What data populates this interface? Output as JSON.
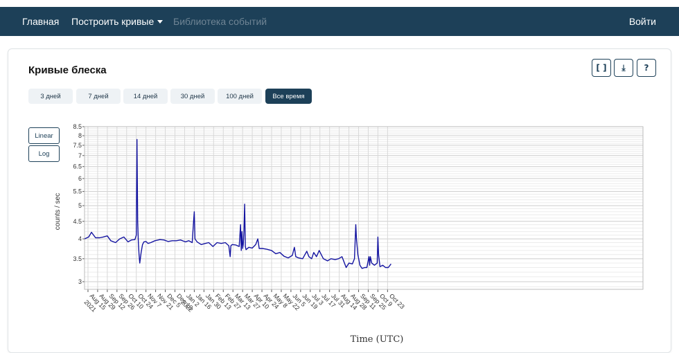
{
  "nav": {
    "home": "Главная",
    "build": "Построить кривые",
    "library": "Библиотека событий",
    "login": "Войти"
  },
  "card": {
    "title": "Кривые блеска",
    "tools": [
      {
        "label": "[ ]",
        "icon": "fullscreen-icon"
      },
      {
        "label": "⤓",
        "icon": "download-icon"
      },
      {
        "label": "?",
        "icon": "help-icon"
      }
    ],
    "ranges": [
      "3 дней",
      "7 дней",
      "14 дней",
      "30 дней",
      "100 дней",
      "Все время"
    ],
    "active_range": "Все время",
    "scales": [
      "Linear",
      "Log"
    ]
  },
  "colors": {
    "navbar": "#1d4058",
    "accent": "#1d4058",
    "series": "#1414a0"
  },
  "chart_data": {
    "type": "line",
    "xlabel": "Time (UTC)",
    "ylabel": "counts / sec",
    "yscale": "log",
    "ylim": [
      2.85,
      8.5
    ],
    "xlim": [
      "2021-08-10",
      "2023-10-28"
    ],
    "y_ticks": [
      "3",
      "3.5",
      "4",
      "4.5",
      "5",
      "5.5",
      "6",
      "6.5",
      "7",
      "7.5",
      "8",
      "8.5"
    ],
    "x_ticks": [
      {
        "date": "2021-08-15",
        "label": "Aug 15",
        "sub": "2021"
      },
      {
        "date": "2021-08-29",
        "label": "Aug 29"
      },
      {
        "date": "2021-09-12",
        "label": "Sep 12"
      },
      {
        "date": "2021-09-26",
        "label": "Sep 26"
      },
      {
        "date": "2021-10-10",
        "label": "Oct 10"
      },
      {
        "date": "2021-10-24",
        "label": "Oct 24"
      },
      {
        "date": "2021-11-07",
        "label": "Nov 7"
      },
      {
        "date": "2021-11-21",
        "label": "Nov 21"
      },
      {
        "date": "2021-12-05",
        "label": "Dec 5"
      },
      {
        "date": "2021-12-19",
        "label": "Dec 19"
      },
      {
        "date": "2022-01-02",
        "label": "Jan 2",
        "sub": "2022"
      },
      {
        "date": "2022-01-16",
        "label": "Jan 16"
      },
      {
        "date": "2022-01-30",
        "label": "Jan 30"
      },
      {
        "date": "2022-02-13",
        "label": "Feb 13"
      },
      {
        "date": "2022-02-27",
        "label": "Feb 27"
      },
      {
        "date": "2022-03-13",
        "label": "Mar 13"
      },
      {
        "date": "2022-03-27",
        "label": "Mar 27"
      },
      {
        "date": "2022-04-10",
        "label": "Apr 10"
      },
      {
        "date": "2022-04-24",
        "label": "Apr 24"
      },
      {
        "date": "2022-05-08",
        "label": "May 8"
      },
      {
        "date": "2022-05-22",
        "label": "May 22"
      },
      {
        "date": "2022-06-05",
        "label": "Jun 5"
      },
      {
        "date": "2022-06-19",
        "label": "Jun 19"
      },
      {
        "date": "2022-07-03",
        "label": "Jul 3"
      },
      {
        "date": "2022-07-17",
        "label": "Jul 17"
      },
      {
        "date": "2022-07-31",
        "label": "Jul 31"
      },
      {
        "date": "2022-08-14",
        "label": "Aug 14"
      },
      {
        "date": "2022-08-28",
        "label": "Aug 28"
      },
      {
        "date": "2022-09-11",
        "label": "Sep 11"
      },
      {
        "date": "2022-09-25",
        "label": "Sep 25"
      },
      {
        "date": "2022-10-09",
        "label": "Oct 9"
      },
      {
        "date": "2022-10-23",
        "label": "Oct 23"
      }
    ],
    "series": [
      {
        "x": [
          "2021-08-10",
          "2021-08-16",
          "2021-08-20",
          "2021-08-26",
          "2021-09-01",
          "2021-09-06",
          "2021-09-12",
          "2021-09-17",
          "2021-09-24",
          "2021-09-30",
          "2021-10-06",
          "2021-10-12",
          "2021-10-17",
          "2021-10-22",
          "2021-10-24",
          "2021-10-25",
          "2021-10-26",
          "2021-10-27",
          "2021-10-28",
          "2021-10-29",
          "2021-10-31",
          "2021-11-02",
          "2021-11-04",
          "2021-11-07",
          "2021-11-10",
          "2021-11-14",
          "2021-11-20",
          "2021-11-27",
          "2021-12-03",
          "2021-12-09",
          "2021-12-15",
          "2021-12-21",
          "2021-12-27",
          "2022-01-03",
          "2022-01-08",
          "2022-01-13",
          "2022-01-15",
          "2022-01-16",
          "2022-01-17",
          "2022-01-20",
          "2022-01-26",
          "2022-02-01",
          "2022-02-06",
          "2022-02-12",
          "2022-02-18",
          "2022-02-24",
          "2022-03-02",
          "2022-03-07",
          "2022-03-09",
          "2022-03-10",
          "2022-03-12",
          "2022-03-17",
          "2022-03-22",
          "2022-03-24",
          "2022-03-25",
          "2022-03-26",
          "2022-03-27",
          "2022-03-28",
          "2022-03-29",
          "2022-03-30",
          "2022-03-31",
          "2022-04-01",
          "2022-04-05",
          "2022-04-10",
          "2022-04-15",
          "2022-04-18",
          "2022-04-20",
          "2022-04-25",
          "2022-05-01",
          "2022-05-08",
          "2022-05-14",
          "2022-05-20",
          "2022-05-26",
          "2022-06-01",
          "2022-06-07",
          "2022-06-10",
          "2022-06-12",
          "2022-06-16",
          "2022-06-22",
          "2022-06-28",
          "2022-07-01",
          "2022-07-05",
          "2022-07-08",
          "2022-07-12",
          "2022-07-16",
          "2022-07-22",
          "2022-07-28",
          "2022-08-02",
          "2022-08-08",
          "2022-08-13",
          "2022-08-18",
          "2022-08-24",
          "2022-08-28",
          "2022-09-02",
          "2022-09-05",
          "2022-09-07",
          "2022-09-08",
          "2022-09-10",
          "2022-09-13",
          "2022-09-16",
          "2022-09-20",
          "2022-09-23",
          "2022-09-26",
          "2022-09-27",
          "2022-09-28",
          "2022-09-30",
          "2022-10-04",
          "2022-10-08",
          "2022-10-09",
          "2022-10-10",
          "2022-10-12",
          "2022-10-16",
          "2022-10-20",
          "2022-10-24",
          "2022-10-28"
        ],
        "y": [
          4.0,
          4.05,
          4.18,
          4.03,
          4.03,
          4.05,
          4.08,
          3.95,
          3.9,
          4.0,
          4.05,
          3.92,
          3.97,
          3.98,
          4.1,
          7.8,
          4.5,
          3.9,
          3.6,
          3.4,
          3.65,
          3.85,
          3.92,
          3.93,
          3.88,
          3.9,
          3.95,
          3.98,
          3.97,
          3.93,
          3.95,
          3.95,
          3.97,
          3.92,
          3.95,
          3.9,
          4.5,
          4.8,
          4.0,
          3.92,
          3.85,
          3.88,
          3.9,
          3.8,
          3.9,
          3.88,
          3.9,
          3.82,
          3.55,
          3.82,
          3.85,
          3.84,
          3.8,
          4.4,
          3.7,
          4.2,
          3.75,
          3.85,
          4.25,
          5.05,
          3.8,
          3.72,
          3.78,
          3.76,
          3.85,
          4.0,
          3.75,
          3.75,
          3.73,
          3.7,
          3.62,
          3.65,
          3.56,
          3.52,
          3.58,
          3.78,
          3.55,
          3.52,
          3.5,
          3.68,
          3.55,
          3.5,
          3.65,
          3.55,
          3.7,
          3.5,
          3.45,
          3.5,
          3.48,
          3.5,
          3.55,
          3.3,
          3.4,
          3.38,
          3.5,
          4.4,
          4.0,
          3.6,
          3.35,
          3.28,
          3.3,
          3.3,
          3.55,
          3.35,
          3.55,
          3.4,
          3.35,
          3.4,
          4.05,
          3.6,
          3.32,
          3.35,
          3.3,
          3.3,
          3.38
        ]
      }
    ]
  },
  "chart_title_text": ""
}
